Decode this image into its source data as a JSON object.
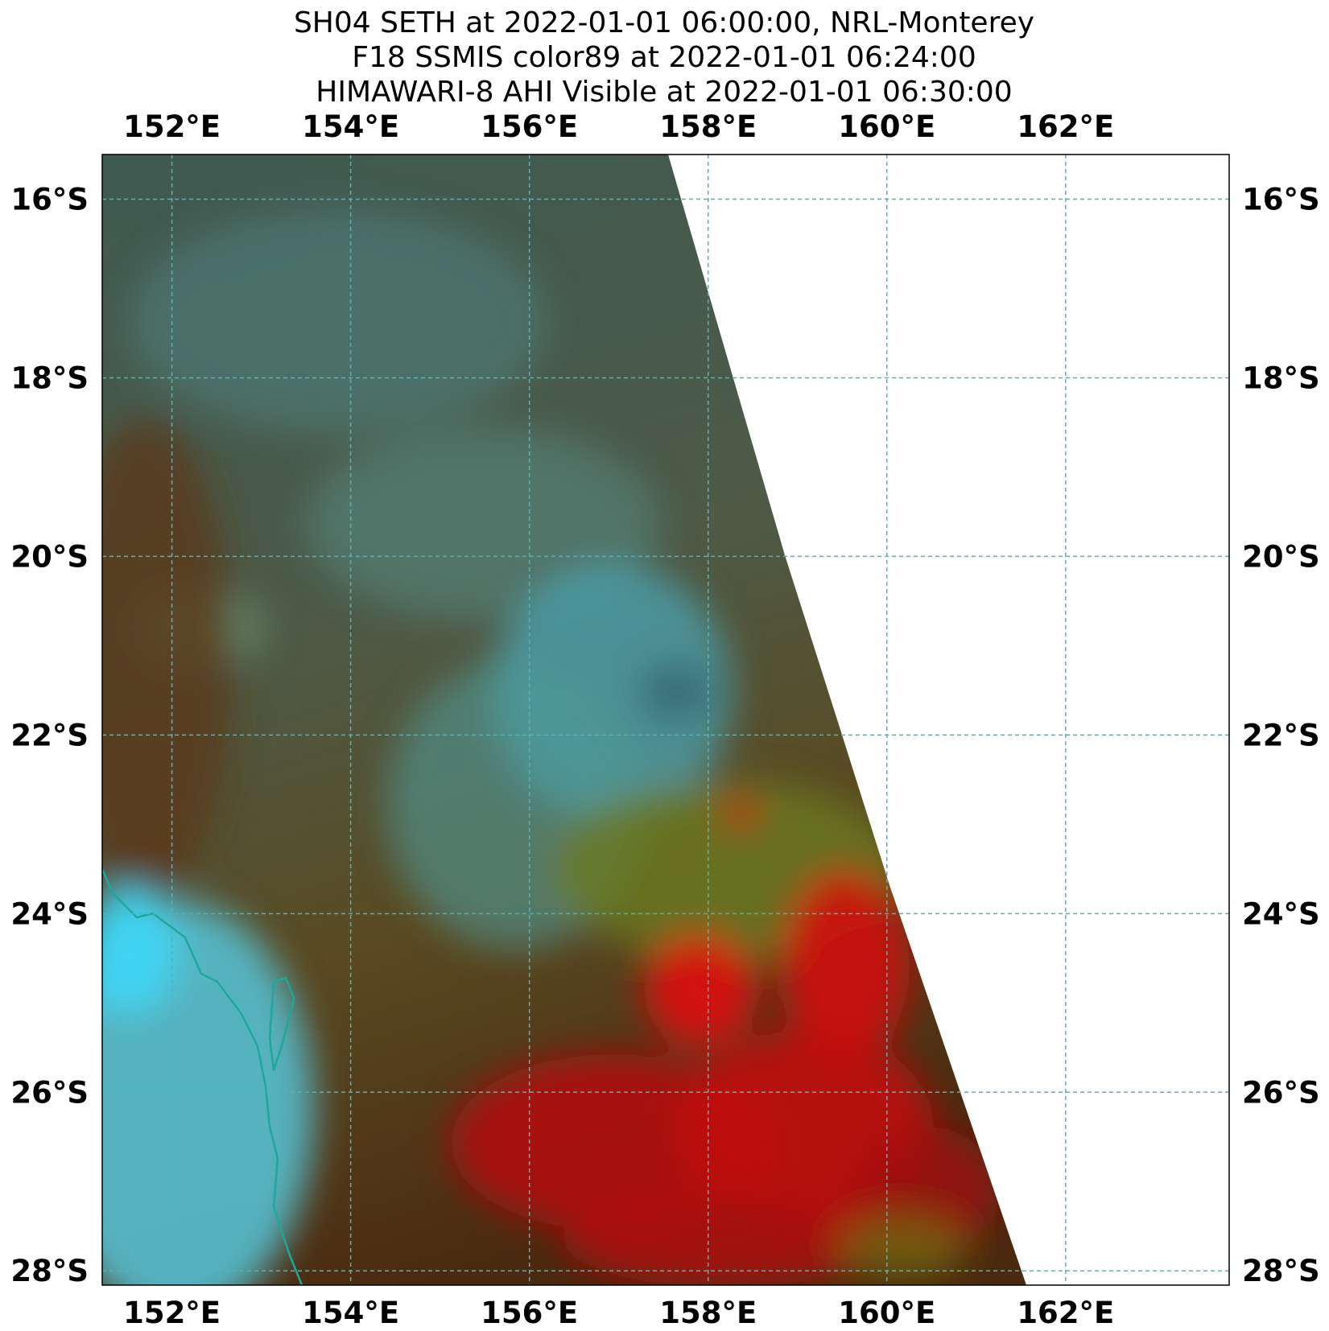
{
  "map": {
    "title": [
      "SH04 SETH at 2022-01-01 06:00:00, NRL-Monterey",
      "F18 SSMIS color89 at 2022-01-01 06:24:00",
      "HIMAWARI-8 AHI Visible at 2022-01-01 06:30:00"
    ],
    "xlim": [
      151.22,
      163.83
    ],
    "ylim": [
      -28.16,
      -15.5
    ],
    "xticks": [
      {
        "value": 152,
        "label": "152°E"
      },
      {
        "value": 154,
        "label": "154°E"
      },
      {
        "value": 156,
        "label": "156°E"
      },
      {
        "value": 158,
        "label": "158°E"
      },
      {
        "value": 160,
        "label": "160°E"
      },
      {
        "value": 162,
        "label": "162°E"
      }
    ],
    "yticks": [
      {
        "value": -16,
        "label": "16°S"
      },
      {
        "value": -18,
        "label": "18°S"
      },
      {
        "value": -20,
        "label": "20°S"
      },
      {
        "value": -22,
        "label": "22°S"
      },
      {
        "value": -24,
        "label": "24°S"
      },
      {
        "value": -26,
        "label": "26°S"
      },
      {
        "value": -28,
        "label": "28°S"
      }
    ],
    "grid": true
  }
}
